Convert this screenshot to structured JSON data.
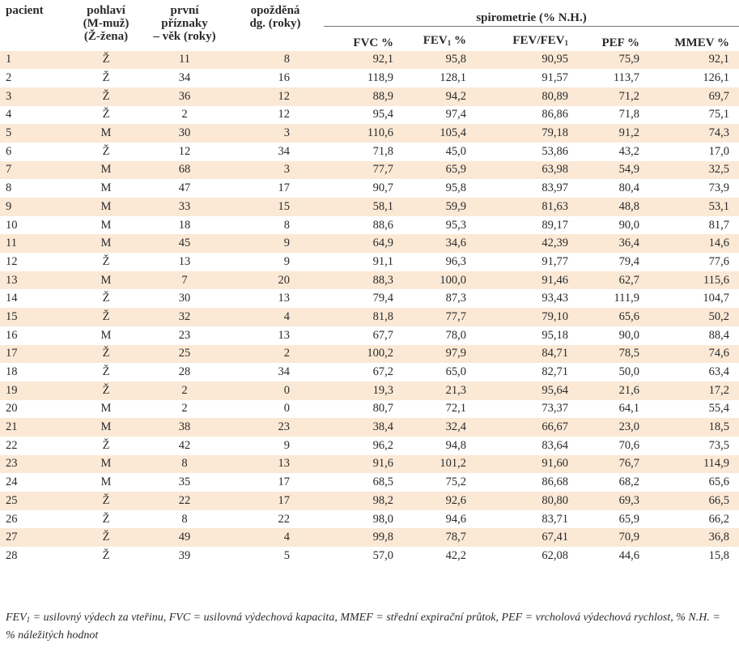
{
  "headers": {
    "patient": "pacient",
    "sex": [
      "pohlaví",
      "(M-muž)",
      "(Ž-žena)"
    ],
    "age": [
      "první",
      "příznaky",
      "– věk (roky)"
    ],
    "delay": [
      "opožděná",
      "dg. (roky)"
    ],
    "spirometry": "spirometrie (% N.H.)",
    "fvc": "FVC %",
    "fev1_main": "FEV",
    "fev1_sub": "1",
    "fev1_suffix": " %",
    "ratio_main": "FEV/FEV",
    "ratio_sub": "1",
    "pef": "PEF %",
    "mmev": "MMEV %"
  },
  "rows": [
    {
      "patient": "1",
      "sex": "Ž",
      "age": "11",
      "delay": "8",
      "fvc": "92,1",
      "fev1": "95,8",
      "ratio": "90,95",
      "pef": "75,9",
      "mmev": "92,1"
    },
    {
      "patient": "2",
      "sex": "Ž",
      "age": "34",
      "delay": "16",
      "fvc": "118,9",
      "fev1": "128,1",
      "ratio": "91,57",
      "pef": "113,7",
      "mmev": "126,1"
    },
    {
      "patient": "3",
      "sex": "Ž",
      "age": "36",
      "delay": "12",
      "fvc": "88,9",
      "fev1": "94,2",
      "ratio": "80,89",
      "pef": "71,2",
      "mmev": "69,7"
    },
    {
      "patient": "4",
      "sex": "Ž",
      "age": "2",
      "delay": "12",
      "fvc": "95,4",
      "fev1": "97,4",
      "ratio": "86,86",
      "pef": "71,8",
      "mmev": "75,1"
    },
    {
      "patient": "5",
      "sex": "M",
      "age": "30",
      "delay": "3",
      "fvc": "110,6",
      "fev1": "105,4",
      "ratio": "79,18",
      "pef": "91,2",
      "mmev": "74,3"
    },
    {
      "patient": "6",
      "sex": "Ž",
      "age": "12",
      "delay": "34",
      "fvc": "71,8",
      "fev1": "45,0",
      "ratio": "53,86",
      "pef": "43,2",
      "mmev": "17,0"
    },
    {
      "patient": "7",
      "sex": "M",
      "age": "68",
      "delay": "3",
      "fvc": "77,7",
      "fev1": "65,9",
      "ratio": "63,98",
      "pef": "54,9",
      "mmev": "32,5"
    },
    {
      "patient": "8",
      "sex": "M",
      "age": "47",
      "delay": "17",
      "fvc": "90,7",
      "fev1": "95,8",
      "ratio": "83,97",
      "pef": "80,4",
      "mmev": "73,9"
    },
    {
      "patient": "9",
      "sex": "M",
      "age": "33",
      "delay": "15",
      "fvc": "58,1",
      "fev1": "59,9",
      "ratio": "81,63",
      "pef": "48,8",
      "mmev": "53,1"
    },
    {
      "patient": "10",
      "sex": "M",
      "age": "18",
      "delay": "8",
      "fvc": "88,6",
      "fev1": "95,3",
      "ratio": "89,17",
      "pef": "90,0",
      "mmev": "81,7"
    },
    {
      "patient": "11",
      "sex": "M",
      "age": "45",
      "delay": "9",
      "fvc": "64,9",
      "fev1": "34,6",
      "ratio": "42,39",
      "pef": "36,4",
      "mmev": "14,6"
    },
    {
      "patient": "12",
      "sex": "Ž",
      "age": "13",
      "delay": "9",
      "fvc": "91,1",
      "fev1": "96,3",
      "ratio": "91,77",
      "pef": "79,4",
      "mmev": "77,6"
    },
    {
      "patient": "13",
      "sex": "M",
      "age": "7",
      "delay": "20",
      "fvc": "88,3",
      "fev1": "100,0",
      "ratio": "91,46",
      "pef": "62,7",
      "mmev": "115,6"
    },
    {
      "patient": "14",
      "sex": "Ž",
      "age": "30",
      "delay": "13",
      "fvc": "79,4",
      "fev1": "87,3",
      "ratio": "93,43",
      "pef": "111,9",
      "mmev": "104,7"
    },
    {
      "patient": "15",
      "sex": "Ž",
      "age": "32",
      "delay": "4",
      "fvc": "81,8",
      "fev1": "77,7",
      "ratio": "79,10",
      "pef": "65,6",
      "mmev": "50,2"
    },
    {
      "patient": "16",
      "sex": "M",
      "age": "23",
      "delay": "13",
      "fvc": "67,7",
      "fev1": "78,0",
      "ratio": "95,18",
      "pef": "90,0",
      "mmev": "88,4"
    },
    {
      "patient": "17",
      "sex": "Ž",
      "age": "25",
      "delay": "2",
      "fvc": "100,2",
      "fev1": "97,9",
      "ratio": "84,71",
      "pef": "78,5",
      "mmev": "74,6"
    },
    {
      "patient": "18",
      "sex": "Ž",
      "age": "28",
      "delay": "34",
      "fvc": "67,2",
      "fev1": "65,0",
      "ratio": "82,71",
      "pef": "50,0",
      "mmev": "63,4"
    },
    {
      "patient": "19",
      "sex": "Ž",
      "age": "2",
      "delay": "0",
      "fvc": "19,3",
      "fev1": "21,3",
      "ratio": "95,64",
      "pef": "21,6",
      "mmev": "17,2"
    },
    {
      "patient": "20",
      "sex": "M",
      "age": "2",
      "delay": "0",
      "fvc": "80,7",
      "fev1": "72,1",
      "ratio": "73,37",
      "pef": "64,1",
      "mmev": "55,4"
    },
    {
      "patient": "21",
      "sex": "M",
      "age": "38",
      "delay": "23",
      "fvc": "38,4",
      "fev1": "32,4",
      "ratio": "66,67",
      "pef": "23,0",
      "mmev": "18,5"
    },
    {
      "patient": "22",
      "sex": "Ž",
      "age": "42",
      "delay": "9",
      "fvc": "96,2",
      "fev1": "94,8",
      "ratio": "83,64",
      "pef": "70,6",
      "mmev": "73,5"
    },
    {
      "patient": "23",
      "sex": "M",
      "age": "8",
      "delay": "13",
      "fvc": "91,6",
      "fev1": "101,2",
      "ratio": "91,60",
      "pef": "76,7",
      "mmev": "114,9"
    },
    {
      "patient": "24",
      "sex": "M",
      "age": "35",
      "delay": "17",
      "fvc": "68,5",
      "fev1": "75,2",
      "ratio": "86,68",
      "pef": "68,2",
      "mmev": "65,6"
    },
    {
      "patient": "25",
      "sex": "Ž",
      "age": "22",
      "delay": "17",
      "fvc": "98,2",
      "fev1": "92,6",
      "ratio": "80,80",
      "pef": "69,3",
      "mmev": "66,5"
    },
    {
      "patient": "26",
      "sex": "Ž",
      "age": "8",
      "delay": "22",
      "fvc": "98,0",
      "fev1": "94,6",
      "ratio": "83,71",
      "pef": "65,9",
      "mmev": "66,2"
    },
    {
      "patient": "27",
      "sex": "Ž",
      "age": "49",
      "delay": "4",
      "fvc": "99,8",
      "fev1": "78,7",
      "ratio": "67,41",
      "pef": "70,9",
      "mmev": "36,8"
    },
    {
      "patient": "28",
      "sex": "Ž",
      "age": "39",
      "delay": "5",
      "fvc": "57,0",
      "fev1": "42,2",
      "ratio": "62,08",
      "pef": "44,6",
      "mmev": "15,8"
    }
  ],
  "footnote": {
    "fev_main": "FEV",
    "fev_sub": "1",
    "text": " = usilovný výdech za vteřinu, FVC = usilovná výdechová kapacita, MMEF = střední expirační průtok, PEF = vrcholová výdechová rychlost, % N.H. = % náležitých hodnot"
  },
  "colors": {
    "row_stripe": "#fbe9d6",
    "text": "#2a2a2a"
  }
}
